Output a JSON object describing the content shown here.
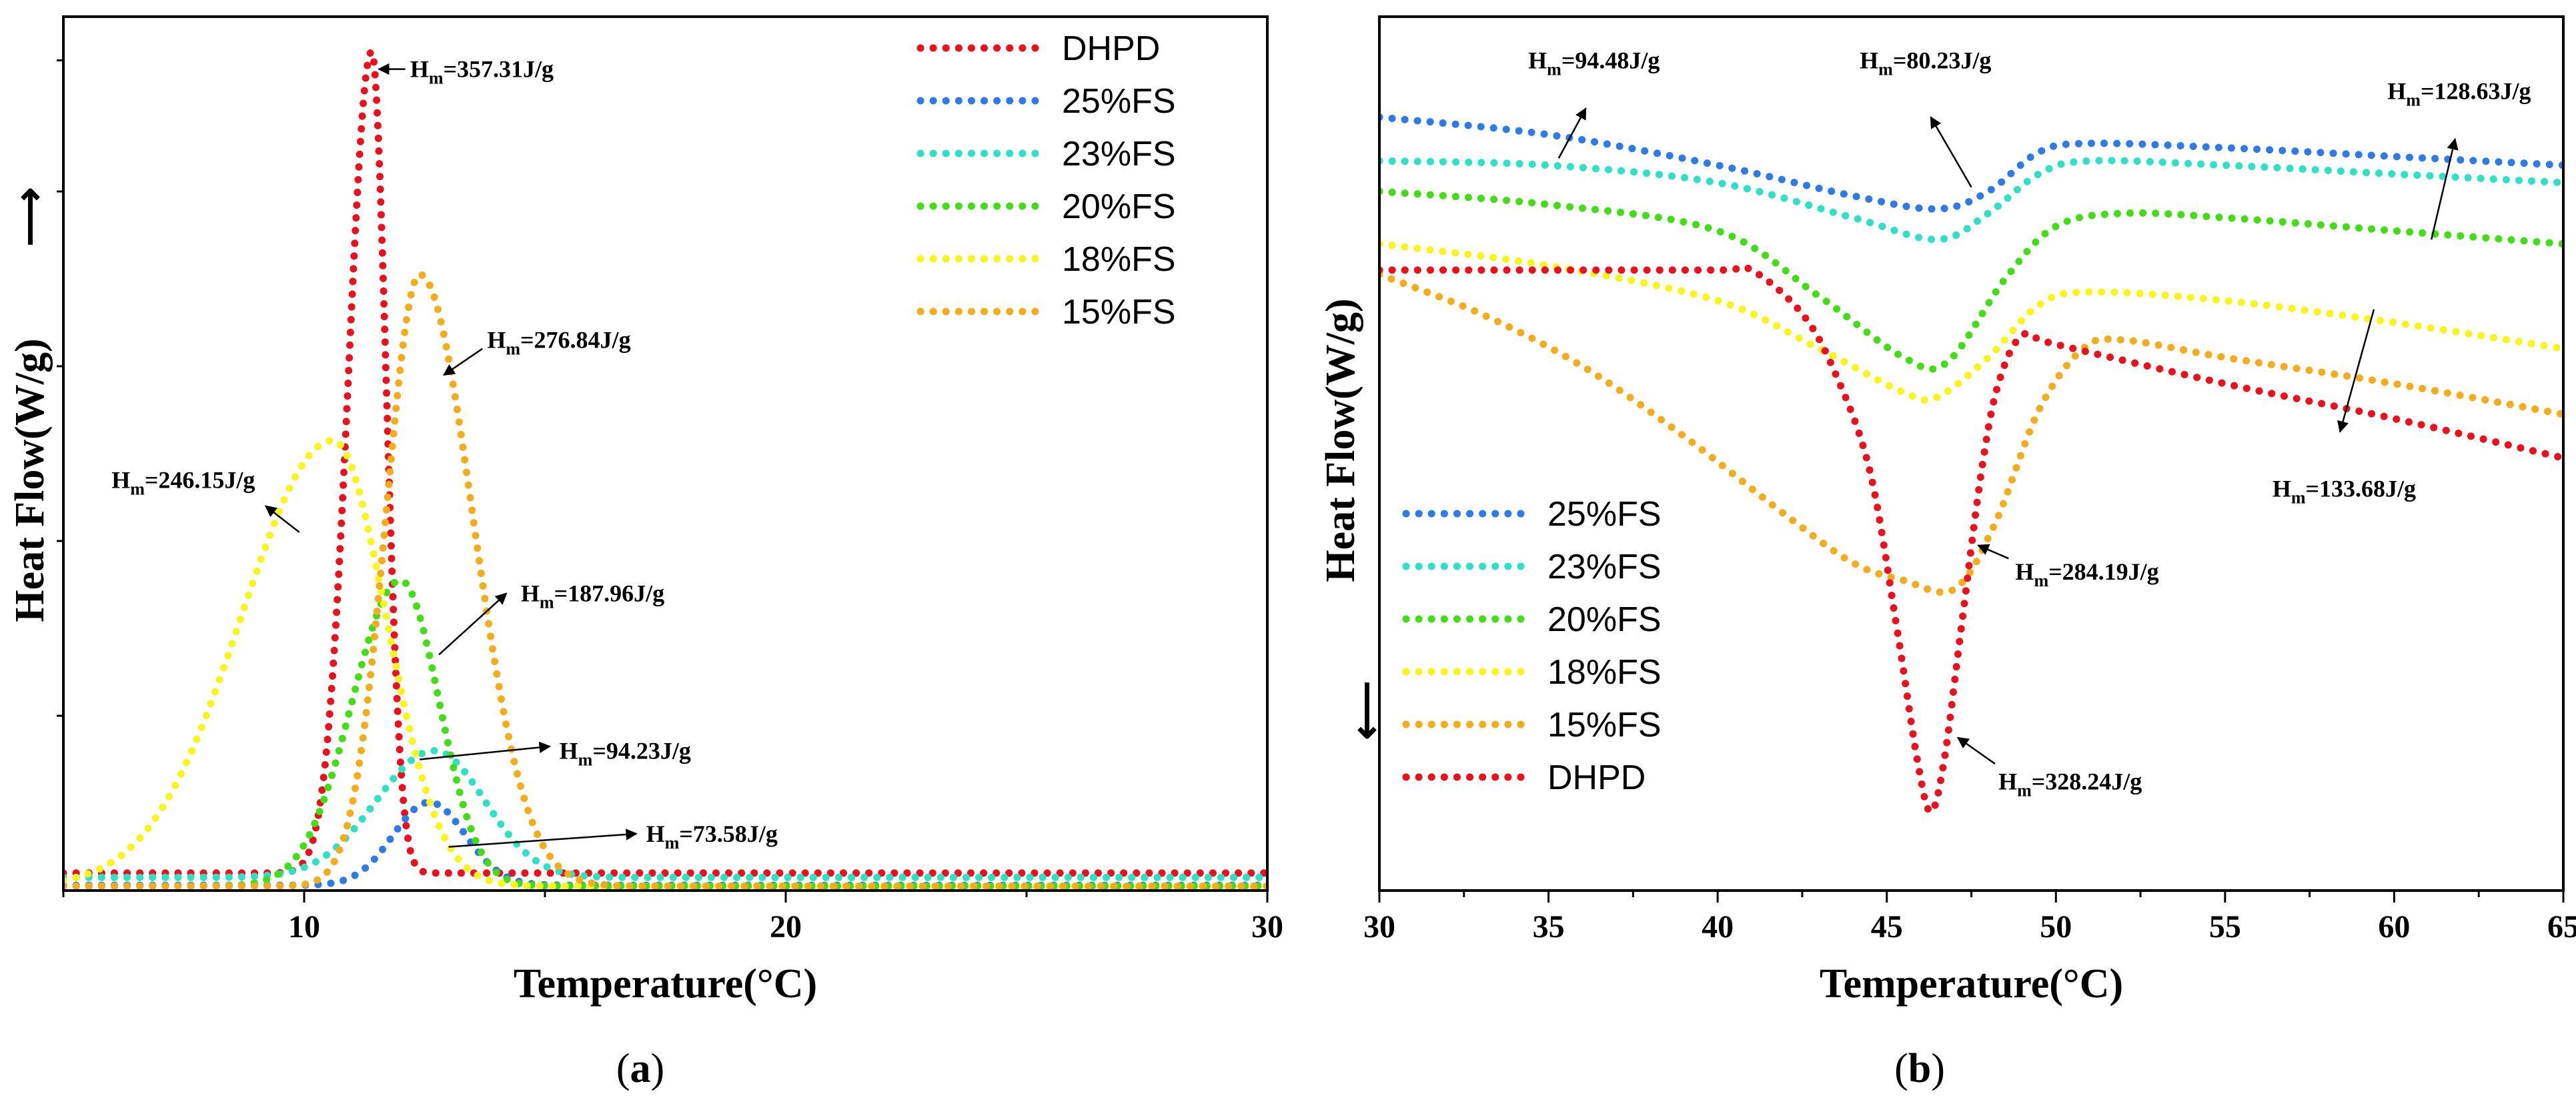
{
  "colors": {
    "DHPD": "#e8111d",
    "25%FS": "#2e7ae6",
    "23%FS": "#2fe0c4",
    "20%FS": "#43dd18",
    "18%FS": "#f7f51c",
    "15%FS": "#f5ac1c"
  },
  "chart_data": [
    {
      "type": "line",
      "panel": "a",
      "xlabel": "Temperature(°C)",
      "ylabel": "Heat Flow(W/g)",
      "ylabel_arrow": "⟶",
      "xlim": [
        5,
        30
      ],
      "ylim": [
        0,
        100
      ],
      "x_ticks": [
        10,
        20,
        30
      ],
      "y_tick_values": [
        20,
        40,
        60,
        80,
        95
      ],
      "x_minor_step": 5,
      "legend": [
        "DHPD",
        "25%FS",
        "23%FS",
        "20%FS",
        "18%FS",
        "15%FS"
      ],
      "series": [
        {
          "name": "DHPD",
          "baseline": 2,
          "peaks": [
            {
              "center": 11.4,
              "height": 94,
              "width_left": 0.48,
              "width_right": 0.3
            }
          ]
        },
        {
          "name": "25%FS",
          "baseline": 0.6,
          "peaks": [
            {
              "center": 12.6,
              "height": 9.5,
              "width_left": 0.75,
              "width_right": 0.75
            }
          ]
        },
        {
          "name": "23%FS",
          "baseline": 1.5,
          "peaks": [
            {
              "center": 12.7,
              "height": 14.5,
              "width_left": 1.2,
              "width_right": 1.05
            }
          ]
        },
        {
          "name": "20%FS",
          "baseline": 0.5,
          "peaks": [
            {
              "center": 12.0,
              "height": 35,
              "width_left": 1.0,
              "width_right": 0.8
            }
          ]
        },
        {
          "name": "18%FS",
          "baseline": 0.5,
          "peaks": [
            {
              "center": 10.6,
              "height": 51,
              "width_left": 1.9,
              "width_right": 1.1
            }
          ]
        },
        {
          "name": "15%FS",
          "baseline": 0.5,
          "peaks": [
            {
              "center": 12.4,
              "height": 70,
              "width_left": 0.7,
              "width_right": 1.1
            }
          ]
        }
      ],
      "annotations": [
        {
          "label": "H",
          "sub": "m",
          "value": "=357.31J/g",
          "arrow_tail": [
            12.1,
            94
          ],
          "arrow_head": [
            11.55,
            94
          ],
          "text_at": [
            12.2,
            94
          ]
        },
        {
          "label": "H",
          "sub": "m",
          "value": "=276.84J/g",
          "arrow_tail": [
            13.7,
            62
          ],
          "arrow_head": [
            12.9,
            59
          ],
          "text_at": [
            13.8,
            63
          ]
        },
        {
          "label": "H",
          "sub": "m",
          "value": "=246.15J/g",
          "arrow_tail": [
            9.9,
            41
          ],
          "arrow_head": [
            9.2,
            44
          ],
          "text_at": [
            6.0,
            47
          ]
        },
        {
          "label": "H",
          "sub": "m",
          "value": "=187.96J/g",
          "arrow_tail": [
            12.8,
            27
          ],
          "arrow_head": [
            14.2,
            34
          ],
          "text_at": [
            14.5,
            34
          ]
        },
        {
          "label": "H",
          "sub": "m",
          "value": "=94.23J/g",
          "arrow_tail": [
            12.4,
            15
          ],
          "arrow_head": [
            15.1,
            16.5
          ],
          "text_at": [
            15.3,
            16
          ]
        },
        {
          "label": "H",
          "sub": "m",
          "value": "=73.58J/g",
          "arrow_tail": [
            13.0,
            5
          ],
          "arrow_head": [
            16.9,
            6.5
          ],
          "text_at": [
            17.1,
            6.5
          ]
        }
      ]
    },
    {
      "type": "line",
      "panel": "b",
      "xlabel": "Temperature(°C)",
      "ylabel": "Heat Flow(W/g)",
      "ylabel_arrow": "⟶",
      "xlim": [
        30,
        65
      ],
      "ylim": [
        0,
        100
      ],
      "x_ticks": [
        30,
        35,
        40,
        45,
        50,
        55,
        60,
        65
      ],
      "x_minor_step": 2.5,
      "legend": [
        "25%FS",
        "23%FS",
        "20%FS",
        "18%FS",
        "15%FS",
        "DHPD"
      ],
      "series": [
        {
          "name": "25%FS",
          "points": [
            [
              30,
              88.5
            ],
            [
              35,
              86.5
            ],
            [
              40,
              83
            ],
            [
              44,
              79.5
            ],
            [
              46.5,
              78
            ],
            [
              48,
              80
            ],
            [
              49.5,
              84.5
            ],
            [
              51,
              85.5
            ],
            [
              55,
              85
            ],
            [
              60,
              84
            ],
            [
              65,
              83
            ]
          ]
        },
        {
          "name": "23%FS",
          "points": [
            [
              30,
              83.5
            ],
            [
              35,
              83
            ],
            [
              40,
              81
            ],
            [
              44,
              77
            ],
            [
              46.5,
              74.5
            ],
            [
              48,
              77.5
            ],
            [
              49.5,
              82
            ],
            [
              51,
              83.5
            ],
            [
              55,
              83
            ],
            [
              60,
              82
            ],
            [
              65,
              81
            ]
          ]
        },
        {
          "name": "20%FS",
          "points": [
            [
              30,
              80
            ],
            [
              35,
              78.5
            ],
            [
              40,
              75.5
            ],
            [
              43,
              68
            ],
            [
              45.5,
              61
            ],
            [
              46.8,
              60.5
            ],
            [
              48.5,
              70
            ],
            [
              50,
              76
            ],
            [
              52,
              77.5
            ],
            [
              55,
              77
            ],
            [
              60,
              75.5
            ],
            [
              65,
              74
            ]
          ]
        },
        {
          "name": "18%FS",
          "points": [
            [
              30,
              74
            ],
            [
              35,
              71.5
            ],
            [
              40,
              67.5
            ],
            [
              43,
              62
            ],
            [
              45.5,
              57
            ],
            [
              46.5,
              56.5
            ],
            [
              48,
              61
            ],
            [
              49.5,
              67
            ],
            [
              51,
              68.5
            ],
            [
              55,
              67.5
            ],
            [
              60,
              65
            ],
            [
              65,
              62
            ]
          ]
        },
        {
          "name": "15%FS",
          "points": [
            [
              30,
              70.5
            ],
            [
              33,
              66
            ],
            [
              36,
              60
            ],
            [
              39,
              52
            ],
            [
              42,
              43
            ],
            [
              44,
              37.5
            ],
            [
              45.5,
              35.5
            ],
            [
              47,
              34.5
            ],
            [
              48.2,
              42
            ],
            [
              49.5,
              55
            ],
            [
              50.8,
              62
            ],
            [
              52,
              63
            ],
            [
              55,
              61
            ],
            [
              60,
              58
            ],
            [
              65,
              54.5
            ]
          ]
        },
        {
          "name": "DHPD",
          "points": [
            [
              30,
              71
            ],
            [
              35,
              71
            ],
            [
              40,
              71
            ],
            [
              41,
              71
            ],
            [
              42.5,
              66
            ],
            [
              43.5,
              59
            ],
            [
              44.5,
              48
            ],
            [
              45.3,
              30
            ],
            [
              45.9,
              15
            ],
            [
              46.3,
              9
            ],
            [
              46.7,
              15
            ],
            [
              47.2,
              30
            ],
            [
              47.8,
              48
            ],
            [
              48.3,
              58
            ],
            [
              49,
              63.5
            ],
            [
              50,
              62.5
            ],
            [
              55,
              58
            ],
            [
              60,
              54
            ],
            [
              65,
              49.5
            ]
          ]
        }
      ],
      "annotations": [
        {
          "label": "H",
          "sub": "m",
          "value": "=94.48J/g",
          "arrow_tail": [
            35.3,
            83.8
          ],
          "arrow_head": [
            36.1,
            89.5
          ],
          "text_at": [
            34.4,
            95
          ]
        },
        {
          "label": "H",
          "sub": "m",
          "value": "=80.23J/g",
          "arrow_tail": [
            47.5,
            80.5
          ],
          "arrow_head": [
            46.3,
            88.5
          ],
          "text_at": [
            44.2,
            95
          ]
        },
        {
          "label": "H",
          "sub": "m",
          "value": "=128.63J/g",
          "arrow_tail": [
            61.1,
            74.5
          ],
          "arrow_head": [
            61.8,
            86
          ],
          "text_at": [
            59.8,
            91.5
          ]
        },
        {
          "label": "H",
          "sub": "m",
          "value": "=133.68J/g",
          "arrow_tail": [
            59.4,
            66.5
          ],
          "arrow_head": [
            58.4,
            52.5
          ],
          "text_at": [
            56.4,
            46
          ]
        },
        {
          "label": "H",
          "sub": "m",
          "value": "=284.19J/g",
          "arrow_tail": [
            48.6,
            38
          ],
          "arrow_head": [
            47.7,
            39.5
          ],
          "text_at": [
            48.8,
            36.5
          ]
        },
        {
          "label": "H",
          "sub": "m",
          "value": "=328.24J/g",
          "arrow_tail": [
            48.2,
            14.5
          ],
          "arrow_head": [
            47.1,
            17.5
          ],
          "text_at": [
            48.3,
            12.5
          ]
        }
      ]
    }
  ],
  "panels": {
    "a": {
      "open": "(",
      "letter": "a",
      "close": ")"
    },
    "b": {
      "open": "(",
      "letter": "b",
      "close": ")"
    }
  }
}
